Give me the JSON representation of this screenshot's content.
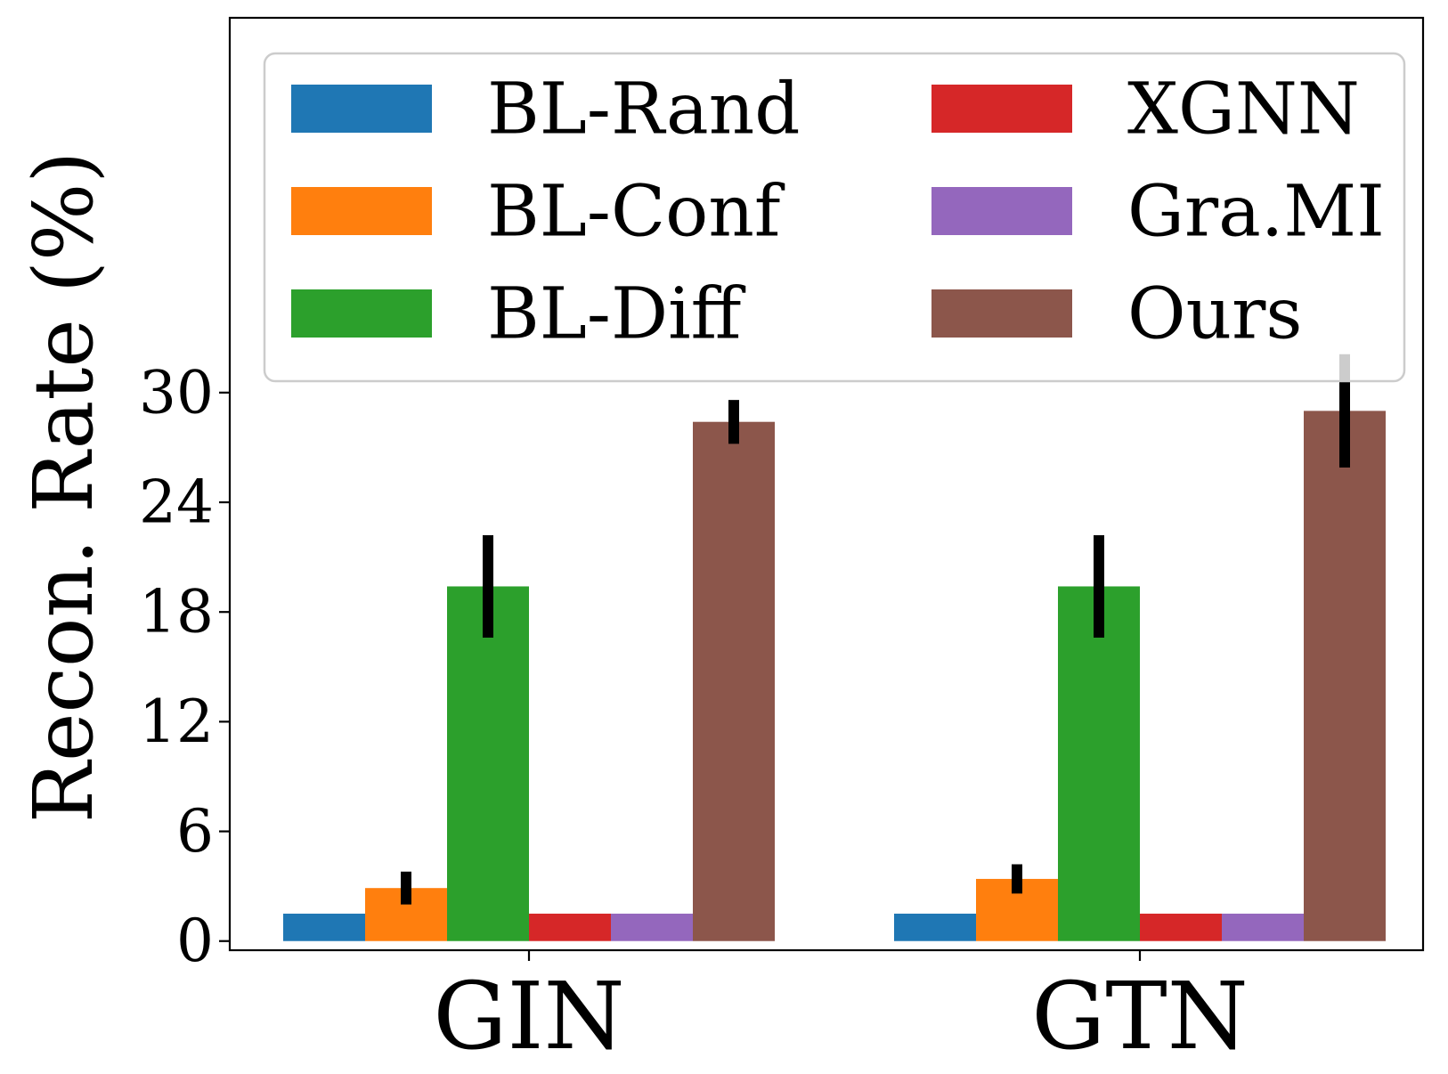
{
  "chart_data": {
    "type": "bar",
    "title": "",
    "xlabel": "",
    "ylabel": "Recon. Rate (%)",
    "categories": [
      "GIN",
      "GTN"
    ],
    "ylim": [
      -0.5,
      50.5
    ],
    "yticks": [
      "0",
      "6",
      "12",
      "18",
      "24",
      "30"
    ],
    "legend_position": "top",
    "grid": false,
    "series": [
      {
        "name": "BL-Rand",
        "color": "#1f77b4",
        "values": [
          1.5,
          1.5
        ],
        "errors": [
          0,
          0
        ]
      },
      {
        "name": "BL-Conf",
        "color": "#ff7f0e",
        "values": [
          2.9,
          3.4
        ],
        "errors": [
          0.9,
          0.8
        ]
      },
      {
        "name": "BL-Diff",
        "color": "#2ca02c",
        "values": [
          19.4,
          19.4
        ],
        "errors": [
          2.8,
          2.8
        ]
      },
      {
        "name": "XGNN",
        "color": "#d62728",
        "values": [
          1.5,
          1.5
        ],
        "errors": [
          0,
          0
        ]
      },
      {
        "name": "Gra.MI",
        "color": "#9467bd",
        "values": [
          1.5,
          1.5
        ],
        "errors": [
          0,
          0
        ]
      },
      {
        "name": "Ours",
        "color": "#8c564b",
        "values": [
          28.4,
          29.0
        ],
        "errors": [
          1.2,
          3.1
        ]
      }
    ]
  }
}
